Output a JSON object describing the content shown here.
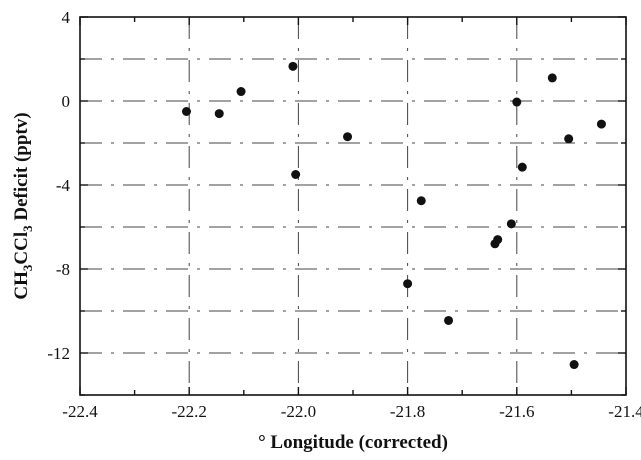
{
  "chart_data": {
    "type": "scatter",
    "xlabel": "° Longitude (corrected)",
    "ylabel_parts": {
      "a": "CH",
      "sub1": "3",
      "b": "CCl",
      "sub2": "3",
      "c": " Deficit (pptv)"
    },
    "xlim": [
      -22.4,
      -21.4
    ],
    "ylim": [
      -14,
      4
    ],
    "x_ticks": [
      -22.4,
      -22.2,
      -22.0,
      -21.8,
      -21.6,
      -21.4
    ],
    "x_tick_labels": [
      "-22.4",
      "-22.2",
      "-22.0",
      "-21.8",
      "-21.6",
      "-21.4"
    ],
    "y_ticks": [
      4,
      0,
      -4,
      -8,
      -12
    ],
    "y_tick_labels": [
      "4",
      "0",
      "-4",
      "-8",
      "-12"
    ],
    "grid": true,
    "points": [
      {
        "x": -22.205,
        "y": -0.5
      },
      {
        "x": -22.145,
        "y": -0.6
      },
      {
        "x": -22.105,
        "y": 0.45
      },
      {
        "x": -22.01,
        "y": 1.65
      },
      {
        "x": -22.005,
        "y": -3.5
      },
      {
        "x": -21.91,
        "y": -1.7
      },
      {
        "x": -21.8,
        "y": -8.7
      },
      {
        "x": -21.775,
        "y": -4.75
      },
      {
        "x": -21.725,
        "y": -10.45
      },
      {
        "x": -21.64,
        "y": -6.8
      },
      {
        "x": -21.635,
        "y": -6.6
      },
      {
        "x": -21.61,
        "y": -5.85
      },
      {
        "x": -21.6,
        "y": -0.05
      },
      {
        "x": -21.59,
        "y": -3.15
      },
      {
        "x": -21.535,
        "y": 1.1
      },
      {
        "x": -21.505,
        "y": -1.8
      },
      {
        "x": -21.495,
        "y": -12.55
      },
      {
        "x": -21.445,
        "y": -1.1
      }
    ]
  }
}
